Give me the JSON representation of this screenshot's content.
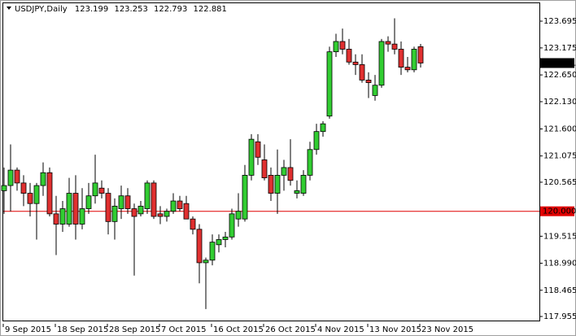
{
  "chart_data": {
    "type": "candlestick",
    "symbol": "USDJPY,Daily",
    "categories": [
      "9 Sep 2015",
      null,
      null,
      null,
      null,
      null,
      null,
      null,
      "18 Sep 2015",
      null,
      null,
      null,
      null,
      null,
      null,
      null,
      "28 Sep 2015",
      null,
      null,
      null,
      null,
      null,
      null,
      null,
      "7 Oct 2015",
      null,
      null,
      null,
      null,
      null,
      null,
      null,
      "16 Oct 2015",
      null,
      null,
      null,
      null,
      null,
      null,
      null,
      "26 Oct 2015",
      null,
      null,
      null,
      null,
      null,
      null,
      null,
      "4 Nov 2015",
      null,
      null,
      null,
      null,
      null,
      null,
      null,
      "13 Nov 2015",
      null,
      null,
      null,
      null,
      null,
      null,
      null,
      "23 Nov 2015"
    ],
    "open": [
      120.4,
      120.5,
      120.8,
      120.55,
      120.35,
      120.15,
      120.5,
      120.75,
      119.95,
      119.75,
      119.75,
      120.35,
      119.75,
      120.05,
      120.3,
      120.45,
      120.35,
      119.8,
      120.05,
      120.3,
      120.05,
      119.95,
      120.05,
      120.55,
      119.95,
      119.9,
      120.0,
      120.2,
      120.15,
      119.85,
      119.65,
      119.0,
      119.05,
      119.35,
      119.45,
      119.5,
      119.85,
      119.85,
      120.7,
      121.35,
      121.0,
      120.7,
      120.35,
      120.7,
      120.85,
      120.35,
      120.35,
      120.7,
      121.2,
      121.55,
      121.85,
      123.1,
      123.3,
      123.15,
      122.9,
      122.85,
      122.55,
      122.25,
      122.45,
      123.3,
      123.25,
      123.15,
      122.8,
      122.75,
      123.199
    ],
    "high": [
      120.85,
      121.3,
      120.85,
      120.7,
      120.55,
      120.55,
      120.95,
      120.85,
      120.3,
      120.2,
      120.65,
      120.7,
      120.45,
      120.55,
      121.1,
      120.6,
      120.45,
      120.25,
      120.5,
      120.45,
      120.15,
      120.2,
      120.6,
      120.6,
      120.1,
      120.05,
      120.35,
      120.3,
      120.3,
      119.9,
      119.75,
      119.1,
      119.55,
      119.55,
      119.6,
      120.05,
      120.35,
      120.9,
      121.5,
      121.5,
      121.3,
      120.85,
      121.2,
      121.0,
      121.4,
      120.6,
      120.8,
      121.35,
      121.7,
      121.75,
      123.2,
      123.45,
      123.55,
      123.35,
      123.05,
      123.05,
      122.7,
      122.65,
      123.35,
      123.4,
      123.75,
      123.3,
      123.0,
      123.2,
      123.253
    ],
    "low": [
      119.95,
      120.0,
      120.4,
      120.1,
      119.9,
      119.45,
      120.3,
      119.9,
      119.15,
      119.6,
      119.7,
      119.45,
      119.65,
      119.95,
      120.15,
      120.25,
      119.55,
      119.45,
      119.85,
      119.95,
      118.75,
      119.9,
      119.95,
      119.85,
      119.75,
      119.8,
      119.95,
      120.0,
      119.85,
      119.55,
      118.6,
      118.1,
      118.95,
      119.2,
      119.3,
      119.45,
      119.7,
      119.8,
      120.6,
      120.9,
      120.6,
      120.2,
      119.95,
      120.4,
      120.5,
      120.25,
      120.3,
      120.6,
      121.1,
      121.45,
      121.8,
      123.0,
      123.05,
      122.85,
      122.65,
      122.5,
      122.2,
      122.15,
      122.4,
      123.1,
      123.05,
      122.65,
      122.7,
      122.7,
      122.793
    ],
    "close": [
      120.5,
      120.8,
      120.55,
      120.35,
      120.15,
      120.5,
      120.75,
      119.95,
      119.75,
      120.05,
      120.35,
      119.75,
      120.05,
      120.3,
      120.55,
      120.35,
      119.8,
      120.1,
      120.3,
      120.05,
      119.9,
      120.1,
      120.55,
      119.9,
      119.9,
      120.0,
      120.2,
      120.05,
      119.85,
      119.65,
      119.0,
      119.05,
      119.4,
      119.45,
      119.5,
      119.95,
      120.0,
      120.7,
      121.4,
      121.05,
      120.65,
      120.35,
      120.7,
      120.85,
      120.6,
      120.4,
      120.7,
      121.2,
      121.55,
      121.7,
      123.1,
      123.3,
      123.15,
      122.9,
      122.85,
      122.55,
      122.5,
      122.45,
      123.3,
      123.25,
      123.15,
      122.8,
      122.75,
      123.15,
      122.881
    ],
    "up_color": "#32cd32",
    "down_color": "#e03030",
    "ylim": [
      117.813,
      124.043
    ],
    "yticks": [
      123.695,
      123.175,
      {
        "value": 122.65,
        "label": "122.650"
      },
      {
        "value": 122.13,
        "label": "122.130"
      },
      {
        "value": 121.6,
        "label": "121.600"
      },
      121.075,
      120.565,
      119.515,
      {
        "value": 118.99,
        "label": "118.990"
      },
      118.465,
      117.955
    ],
    "hline": {
      "value": 120,
      "label": "120.000",
      "color": "#e00000"
    }
  }
}
